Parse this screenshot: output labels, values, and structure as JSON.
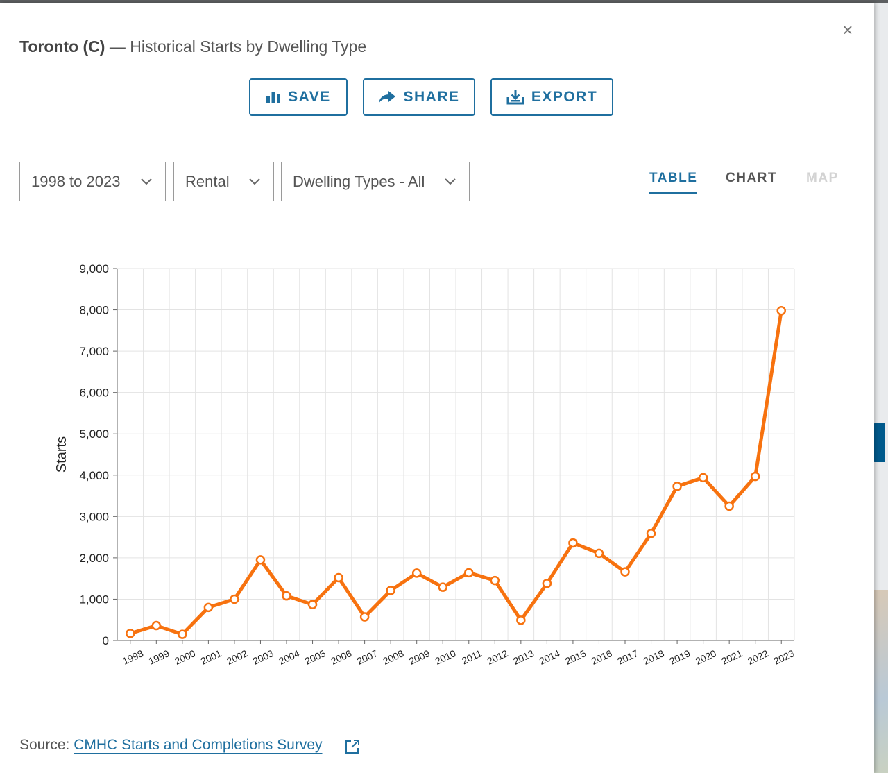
{
  "modal": {
    "title_place": "Toronto (C)",
    "title_rest": " — Historical Starts by Dwelling Type",
    "close_label": "×"
  },
  "toolbar": {
    "save_label": "SAVE",
    "share_label": "SHARE",
    "export_label": "EXPORT"
  },
  "filters": {
    "period": "1998 to 2023",
    "intended_market": "Rental",
    "dwelling_type": "Dwelling Types - All"
  },
  "view_tabs": [
    {
      "label": "TABLE",
      "state": "active"
    },
    {
      "label": "CHART",
      "state": "enabled"
    },
    {
      "label": "MAP",
      "state": "disabled"
    }
  ],
  "chart_data": {
    "type": "line",
    "title": "",
    "xlabel": "",
    "ylabel": "Starts",
    "x": [
      "1998",
      "1999",
      "2000",
      "2001",
      "2002",
      "2003",
      "2004",
      "2005",
      "2006",
      "2007",
      "2008",
      "2009",
      "2010",
      "2011",
      "2012",
      "2013",
      "2014",
      "2015",
      "2016",
      "2017",
      "2018",
      "2019",
      "2020",
      "2021",
      "2022",
      "2023"
    ],
    "series": [
      {
        "values": [
          170,
          360,
          150,
          800,
          1000,
          1950,
          1080,
          870,
          1520,
          570,
          1210,
          1630,
          1290,
          1640,
          1450,
          490,
          1380,
          2360,
          2110,
          1660,
          2590,
          3730,
          3940,
          3250,
          3970,
          7980
        ]
      }
    ],
    "ylim": [
      0,
      9000
    ],
    "yticks": [
      0,
      1000,
      2000,
      3000,
      4000,
      5000,
      6000,
      7000,
      8000,
      9000
    ],
    "ytick_labels": [
      "0",
      "1,000",
      "2,000",
      "3,000",
      "4,000",
      "5,000",
      "6,000",
      "7,000",
      "8,000",
      "9,000"
    ],
    "grid": true,
    "legend": "none",
    "line_color": "#f7720f"
  },
  "source": {
    "prefix": "Source: ",
    "link_text": "CMHC Starts and Completions Survey"
  },
  "colors": {
    "accent": "#1f6f9f",
    "series": "#f7720f"
  }
}
